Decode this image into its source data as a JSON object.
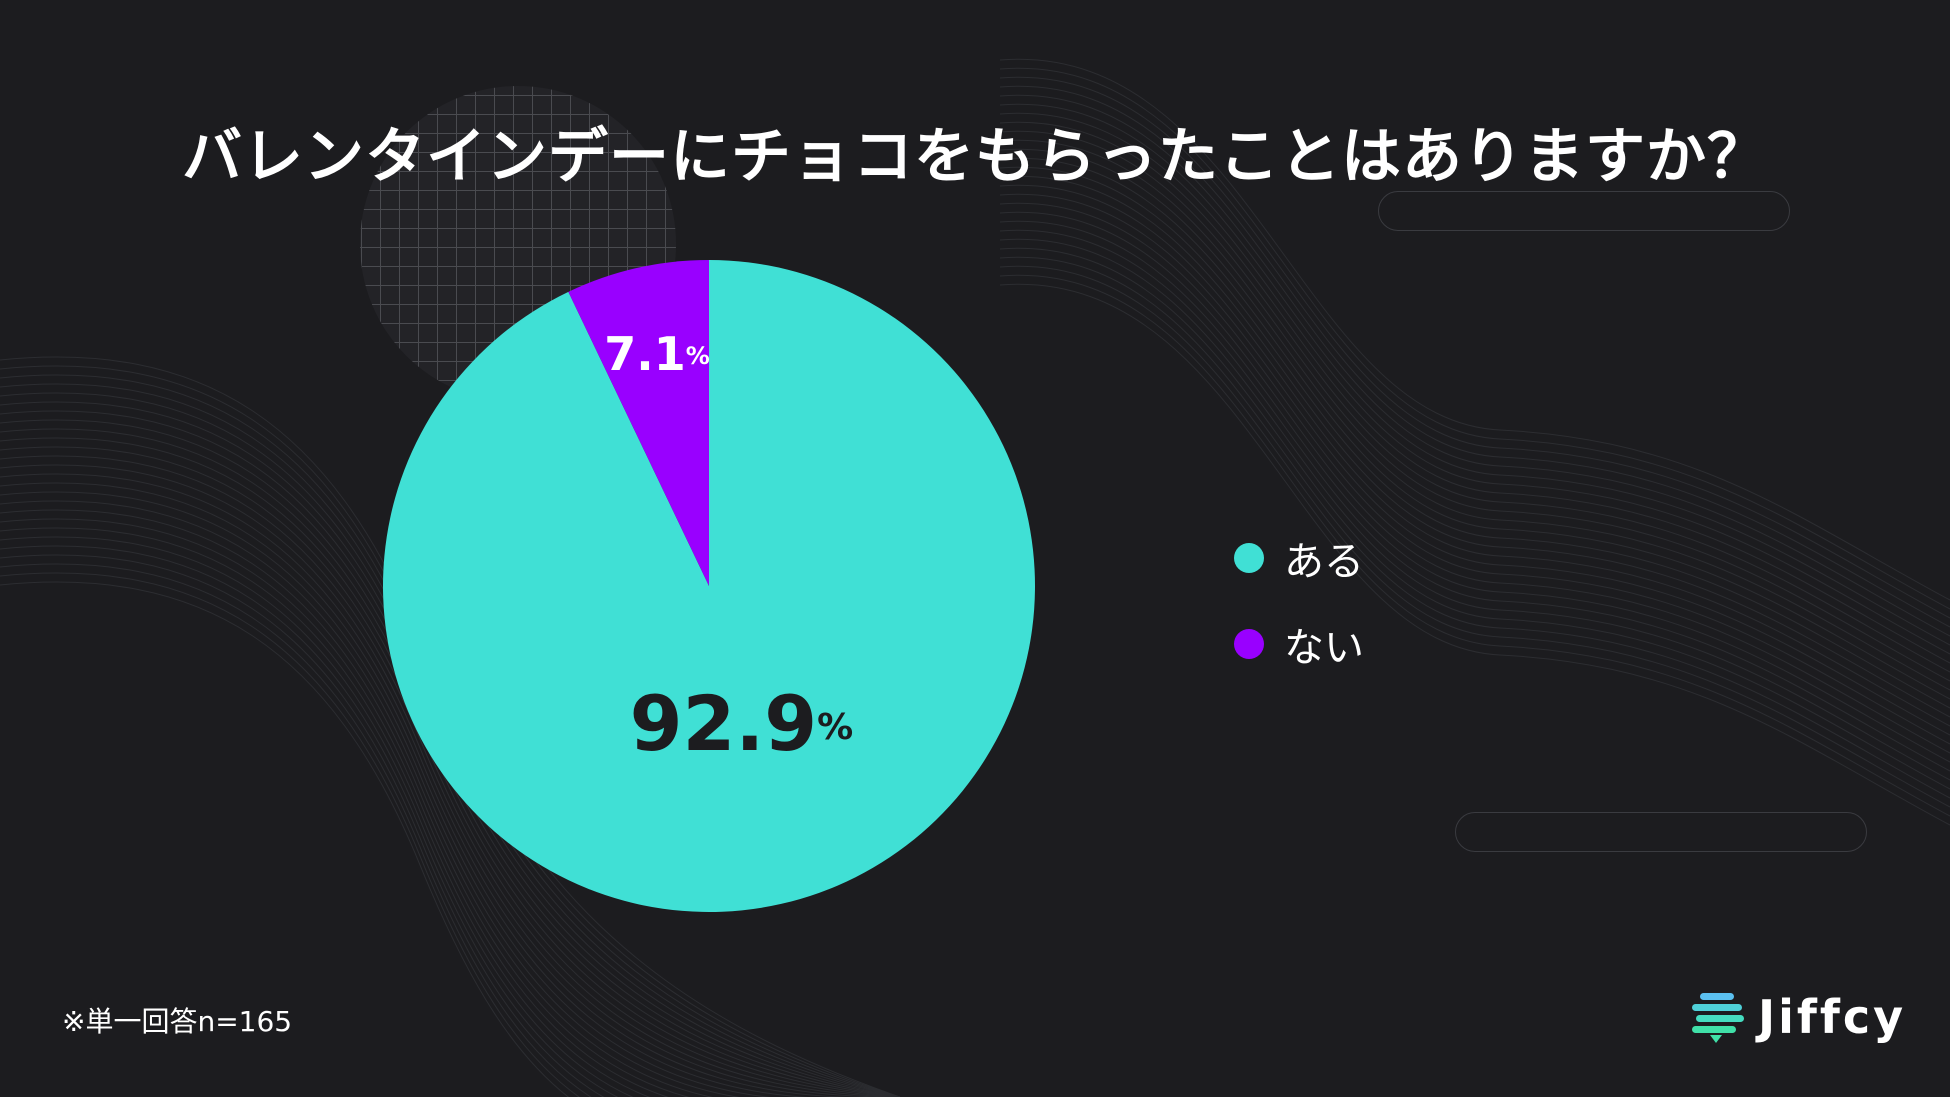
{
  "title": "バレンタインデーにチョコをもらったことはありますか？",
  "footnote": "※単一回答n=165",
  "logo_text": "Jiffcy",
  "chart_data": {
    "type": "pie",
    "start": "12 o'clock",
    "direction": "clockwise",
    "slices": [
      {
        "label": "ある",
        "value": 92.9,
        "display": "92.9",
        "unit": "%",
        "color": "#40e0d5",
        "label_color": "#1c1c1f"
      },
      {
        "label": "ない",
        "value": 7.1,
        "display": "7.1",
        "unit": "%",
        "color": "#9900ff",
        "label_color": "#ffffff"
      }
    ],
    "legend_position": "right"
  },
  "colors": {
    "background": "#1c1c1f",
    "text": "#ffffff"
  }
}
